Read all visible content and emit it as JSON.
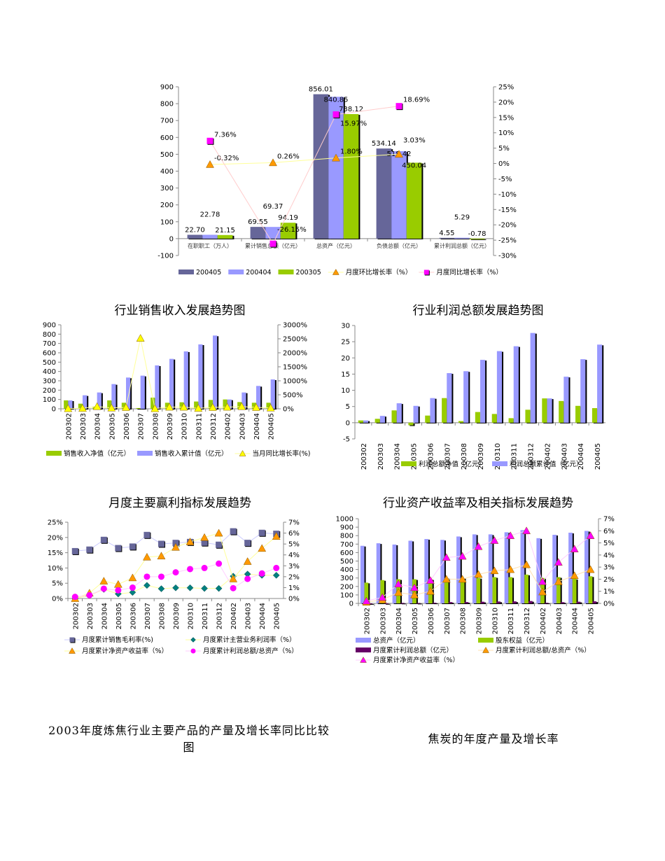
{
  "chart_data": [
    {
      "type": "bar",
      "title": "",
      "categories": [
        "在职职工（万人）",
        "累计销售总额（亿元）",
        "总资产（亿元）",
        "负债总额（亿元）",
        "累计利润总额（亿元）"
      ],
      "left_axis": {
        "range": [
          -100,
          900
        ],
        "ticks": [
          -100,
          0,
          100,
          200,
          300,
          400,
          500,
          600,
          700,
          800,
          900
        ],
        "suffix": ""
      },
      "right_axis": {
        "range": [
          -30,
          25
        ],
        "ticks": [
          -30,
          -25,
          -20,
          -15,
          -10,
          -5,
          0,
          5,
          10,
          15,
          20,
          25
        ],
        "suffix": "%"
      },
      "series": [
        {
          "name": "200405",
          "kind": "bar",
          "color": "#666699",
          "values": [
            22.7,
            69.55,
            856.01,
            534.14,
            4.55
          ],
          "labels": true
        },
        {
          "name": "200404",
          "kind": "bar",
          "color": "#9999ff",
          "values": [
            22.78,
            69.37,
            840.85,
            518.42,
            5.29
          ],
          "labels": true
        },
        {
          "name": "200305",
          "kind": "bar",
          "color": "#99cc00",
          "values": [
            21.15,
            94.19,
            738.12,
            450.04,
            -0.78
          ],
          "labels": true
        },
        {
          "name": "月度环比增长率（%）",
          "kind": "line",
          "axis": "right",
          "marker": "triangle",
          "color": "#ff9900",
          "line": "#ffff99",
          "values": [
            -0.32,
            0.26,
            1.8,
            3.03,
            null
          ],
          "labels": true
        },
        {
          "name": "月度同比增长率（%）",
          "kind": "line",
          "axis": "right",
          "marker": "square",
          "color": "#ff00ff",
          "line": "#ffcccc",
          "values": [
            7.36,
            -26.15,
            15.97,
            18.69,
            null
          ],
          "labels": true
        }
      ]
    },
    {
      "type": "bar",
      "title": "行业销售收入发展趋势图",
      "categories": [
        "200302",
        "200303",
        "200304",
        "200305",
        "200306",
        "200307",
        "200308",
        "200309",
        "200310",
        "200311",
        "200312",
        "200402",
        "200403",
        "200404",
        "200405"
      ],
      "left_axis": {
        "range": [
          0,
          900
        ],
        "ticks": [
          0,
          100,
          200,
          300,
          400,
          500,
          600,
          700,
          800,
          900
        ],
        "suffix": ""
      },
      "right_axis": {
        "range": [
          0,
          3000
        ],
        "ticks": [
          0,
          500,
          1000,
          1500,
          2000,
          2500,
          3000
        ],
        "suffix": "%"
      },
      "series": [
        {
          "name": "销售收入净值（亿元）",
          "kind": "bar",
          "color": "#99cc00",
          "values": [
            90,
            55,
            25,
            90,
            65,
            8,
            120,
            65,
            70,
            78,
            95,
            100,
            72,
            65,
            65
          ]
        },
        {
          "name": "销售收入累计值（亿元）",
          "kind": "bar",
          "color": "#9999ff",
          "values": [
            90,
            145,
            175,
            265,
            335,
            355,
            465,
            535,
            615,
            690,
            785,
            100,
            175,
            245,
            315
          ]
        },
        {
          "name": "当月同比增长率(%)",
          "kind": "line",
          "axis": "right",
          "marker": "triangle",
          "color": "#ffff00",
          "line": "#ffff99",
          "values": [
            10,
            20,
            80,
            30,
            50,
            2520,
            10,
            60,
            60,
            20,
            50,
            60,
            80,
            50,
            30
          ]
        }
      ]
    },
    {
      "type": "bar",
      "title": "行业利润总额发展趋势图",
      "categories": [
        "200302",
        "200303",
        "200304",
        "200305",
        "200306",
        "200307",
        "200308",
        "200309",
        "200310",
        "200311",
        "200312",
        "200402",
        "200403",
        "200404",
        "200405"
      ],
      "left_axis": {
        "range": [
          -5,
          30
        ],
        "ticks": [
          -5,
          0,
          5,
          10,
          15,
          20,
          25,
          30
        ],
        "suffix": ""
      },
      "series": [
        {
          "name": "利润总额净值（亿元）",
          "kind": "bar",
          "color": "#99cc00",
          "values": [
            0.7,
            1.2,
            3.8,
            -0.8,
            2.2,
            7.6,
            0.5,
            3.3,
            2.7,
            1.4,
            4.0,
            7.5,
            6.7,
            5.2,
            4.5
          ]
        },
        {
          "name": "利润总额累计值（亿元）",
          "kind": "bar",
          "color": "#9999ff",
          "values": [
            0.7,
            2.1,
            6.0,
            5.2,
            7.6,
            15.3,
            15.9,
            19.4,
            22.1,
            23.6,
            27.7,
            7.5,
            14.2,
            19.6,
            24.1
          ]
        }
      ]
    },
    {
      "type": "line",
      "title": "月度主要赢利指标发展趋势",
      "categories": [
        "200302",
        "200303",
        "200304",
        "200305",
        "200306",
        "200307",
        "200308",
        "200309",
        "200310",
        "200311",
        "200312",
        "200402",
        "200403",
        "200404",
        "200405"
      ],
      "left_axis": {
        "range": [
          0,
          25
        ],
        "ticks": [
          0,
          5,
          10,
          15,
          20,
          25
        ],
        "suffix": "%"
      },
      "right_axis": {
        "range": [
          0,
          7
        ],
        "ticks": [
          0,
          1,
          2,
          3,
          4,
          5,
          6,
          7
        ],
        "suffix": "%"
      },
      "series": [
        {
          "name": "月度累计销售毛利率(%)",
          "kind": "line",
          "axis": "left",
          "marker": "square",
          "color": "#666699",
          "line": "#ccccff",
          "values": [
            15.5,
            16,
            19.2,
            16.5,
            17,
            20.8,
            17.9,
            18.2,
            18.5,
            18.3,
            17.6,
            22,
            18.2,
            21.5,
            21.2
          ]
        },
        {
          "name": "月度累计主营业务利润率（%）",
          "kind": "line",
          "axis": "left",
          "marker": "diamond",
          "color": "#008080",
          "line": "#ffff99",
          "values": [
            0,
            1,
            3,
            1.5,
            2,
            4.3,
            3.2,
            3.5,
            3.5,
            3.3,
            3.3,
            7.3,
            8,
            7.6,
            7.6
          ]
        },
        {
          "name": "月度累计净资产收益率（%）",
          "kind": "line",
          "axis": "right",
          "marker": "triangle",
          "color": "#ff9900",
          "line": "#ffff99",
          "values": [
            0,
            0.5,
            1.6,
            1.3,
            1.9,
            3.8,
            3.9,
            4.7,
            5.2,
            5.6,
            6.0,
            1.8,
            3.4,
            4.6,
            5.7
          ]
        },
        {
          "name": "月度累计利润总额/总资产（%）",
          "kind": "line",
          "axis": "right",
          "marker": "circle",
          "color": "#ff00ff",
          "line": "#ffccff",
          "values": [
            0.15,
            0.3,
            0.9,
            0.75,
            1.0,
            2.0,
            2.0,
            2.4,
            2.7,
            2.8,
            3.2,
            0.95,
            1.8,
            2.3,
            2.8
          ]
        }
      ]
    },
    {
      "type": "bar",
      "title": "行业资产收益率及相关指标发展趋势",
      "categories": [
        "200302",
        "200303",
        "200304",
        "200305",
        "200306",
        "200307",
        "200308",
        "200309",
        "200310",
        "200311",
        "200312",
        "200402",
        "200403",
        "200404",
        "200405"
      ],
      "left_axis": {
        "range": [
          0,
          1000
        ],
        "ticks": [
          0,
          100,
          200,
          300,
          400,
          500,
          600,
          700,
          800,
          900,
          1000
        ],
        "suffix": ""
      },
      "right_axis": {
        "range": [
          0,
          7
        ],
        "ticks": [
          0,
          1,
          2,
          3,
          4,
          5,
          6,
          7
        ],
        "suffix": "%"
      },
      "series": [
        {
          "name": "总资产（亿元）",
          "kind": "bar",
          "color": "#9999ff",
          "values": [
            680,
            710,
            695,
            740,
            760,
            750,
            790,
            815,
            815,
            840,
            865,
            770,
            810,
            835,
            856
          ]
        },
        {
          "name": "股东权益（亿元）",
          "kind": "bar",
          "color": "#99cc00",
          "values": [
            245,
            275,
            285,
            285,
            285,
            300,
            300,
            300,
            310,
            310,
            340,
            300,
            310,
            290,
            320
          ]
        },
        {
          "name": "月度累计利润总额（亿元）",
          "kind": "bar",
          "color": "#660066",
          "values": [
            0.7,
            2.1,
            6,
            5.2,
            7.6,
            15.3,
            15.9,
            19.4,
            22.1,
            23.6,
            27.7,
            7.5,
            14.2,
            19.6,
            24.1
          ]
        },
        {
          "name": "月度累计利润总额/总资产（%）",
          "kind": "line",
          "axis": "right",
          "marker": "triangle",
          "color": "#ff9900",
          "line": "#ffe0b0",
          "values": [
            0.1,
            0.3,
            0.9,
            0.7,
            1.0,
            2.0,
            2.0,
            2.4,
            2.7,
            2.8,
            3.2,
            0.95,
            1.8,
            2.3,
            2.8
          ]
        },
        {
          "name": "月度累计净资产收益率（%）",
          "kind": "line",
          "axis": "right",
          "marker": "triangle",
          "color": "#ff00ff",
          "line": "#ffccff",
          "values": [
            0.2,
            0.5,
            1.6,
            1.3,
            1.9,
            3.8,
            3.9,
            4.7,
            5.2,
            5.6,
            6.0,
            1.8,
            3.4,
            4.5,
            5.6
          ]
        }
      ]
    }
  ],
  "document": {
    "title_left": "2003年度炼焦行业主要产品的产量及增长率同比比较",
    "title_left_line2": "图",
    "title_right": "焦炭的年度产量及增长率"
  }
}
